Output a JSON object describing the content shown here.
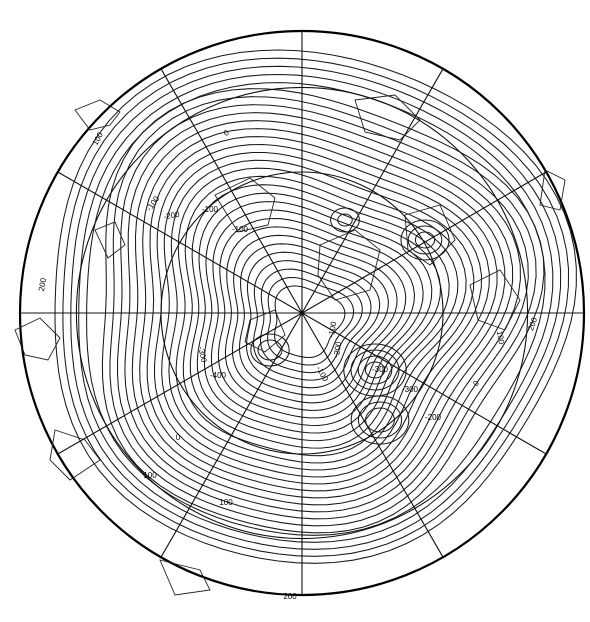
{
  "map": {
    "projection": "north polar stereographic",
    "contour_labels": [
      {
        "text": "-100",
        "rot": -55
      },
      {
        "text": "100",
        "rot": -62
      },
      {
        "text": "0",
        "rot": -40
      },
      {
        "text": "-200",
        "rot": -10
      },
      {
        "text": "-100",
        "rot": 0
      },
      {
        "text": "-100",
        "rot": 0
      },
      {
        "text": "200",
        "rot": -80
      },
      {
        "text": "-300",
        "rot": 78
      },
      {
        "text": "-400",
        "rot": 0
      },
      {
        "text": "-100",
        "rot": -80
      },
      {
        "text": "-200",
        "rot": -80
      },
      {
        "text": "-300",
        "rot": 0
      },
      {
        "text": "-300",
        "rot": 0
      },
      {
        "text": "-200",
        "rot": 0
      },
      {
        "text": "100",
        "rot": 80
      },
      {
        "text": "0",
        "rot": -50
      },
      {
        "text": "200",
        "rot": -70
      },
      {
        "text": "-100",
        "rot": 60
      },
      {
        "text": "0",
        "rot": 0
      },
      {
        "text": "100",
        "rot": 0
      },
      {
        "text": "200",
        "rot": 0
      },
      {
        "text": "100",
        "rot": 0
      }
    ]
  }
}
